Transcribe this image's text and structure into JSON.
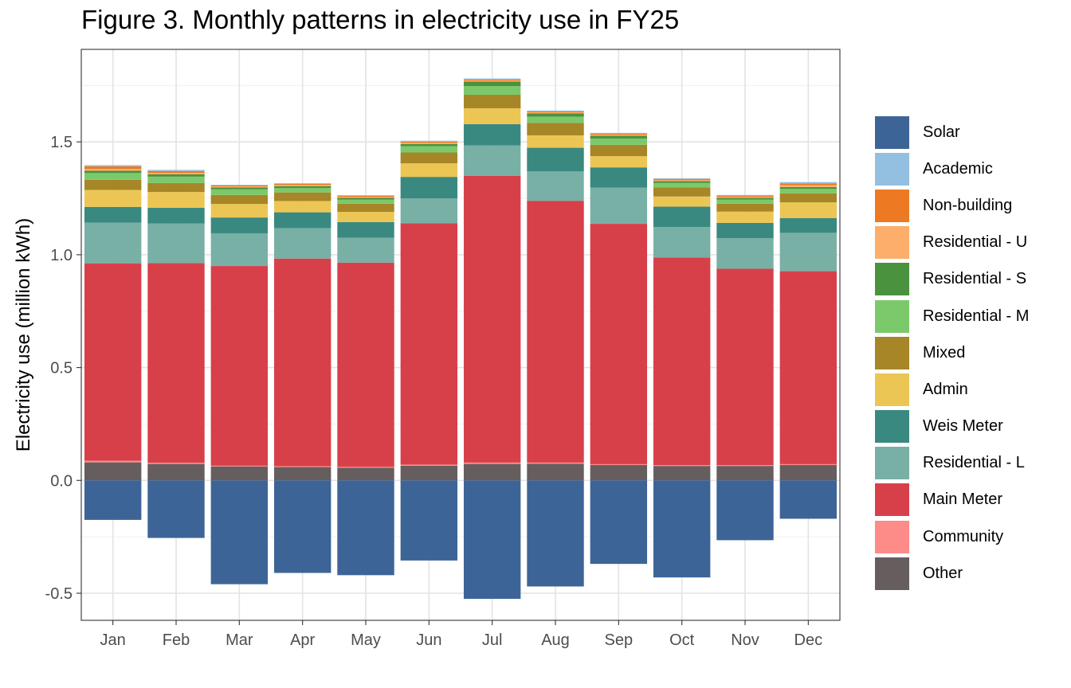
{
  "chart_data": {
    "type": "bar",
    "stacked": true,
    "title": "Figure 3. Monthly patterns in electricity use in FY25",
    "xlabel": "",
    "ylabel": "Electricity use (million kWh)",
    "ylim": [
      -0.62,
      1.91
    ],
    "yticks": [
      -0.5,
      0.0,
      0.5,
      1.0,
      1.5
    ],
    "ytick_labels": [
      "-0.5",
      "0.0",
      "0.5",
      "1.0",
      "1.5"
    ],
    "grid": true,
    "legend_position": "right",
    "categories": [
      "Jan",
      "Feb",
      "Mar",
      "Apr",
      "May",
      "Jun",
      "Jul",
      "Aug",
      "Sep",
      "Oct",
      "Nov",
      "Dec"
    ],
    "stack_order": [
      "Other",
      "Community",
      "Main Meter",
      "Residential - L",
      "Weis Meter",
      "Admin",
      "Mixed",
      "Residential - M",
      "Residential - S",
      "Residential - U",
      "Non-building",
      "Academic",
      "Solar"
    ],
    "series": [
      {
        "name": "Solar",
        "color": "#3d6496",
        "values": [
          -0.175,
          -0.255,
          -0.46,
          -0.41,
          -0.42,
          -0.355,
          -0.525,
          -0.47,
          -0.37,
          -0.43,
          -0.265,
          -0.17
        ]
      },
      {
        "name": "Academic",
        "color": "#93bfe0",
        "values": [
          0.005,
          0.005,
          0.003,
          0.003,
          0.003,
          0.004,
          0.005,
          0.004,
          0.004,
          0.003,
          0.003,
          0.006
        ]
      },
      {
        "name": "Non-building",
        "color": "#ed7a23",
        "values": [
          0.012,
          0.008,
          0.004,
          0.005,
          0.004,
          0.005,
          0.004,
          0.004,
          0.004,
          0.005,
          0.005,
          0.008
        ]
      },
      {
        "name": "Residential - U",
        "color": "#fcae6a",
        "values": [
          0.008,
          0.007,
          0.005,
          0.005,
          0.005,
          0.005,
          0.005,
          0.005,
          0.005,
          0.005,
          0.005,
          0.008
        ]
      },
      {
        "name": "Residential - S",
        "color": "#4a923e",
        "values": [
          0.01,
          0.01,
          0.008,
          0.008,
          0.008,
          0.01,
          0.02,
          0.014,
          0.012,
          0.008,
          0.008,
          0.008
        ]
      },
      {
        "name": "Residential - M",
        "color": "#7cc96b",
        "values": [
          0.03,
          0.028,
          0.025,
          0.02,
          0.018,
          0.028,
          0.038,
          0.028,
          0.028,
          0.02,
          0.018,
          0.02
        ]
      },
      {
        "name": "Mixed",
        "color": "#a68626",
        "values": [
          0.045,
          0.04,
          0.04,
          0.038,
          0.036,
          0.048,
          0.06,
          0.055,
          0.05,
          0.04,
          0.035,
          0.04
        ]
      },
      {
        "name": "Admin",
        "color": "#ecc654",
        "values": [
          0.075,
          0.07,
          0.06,
          0.05,
          0.045,
          0.06,
          0.07,
          0.055,
          0.05,
          0.045,
          0.05,
          0.07
        ]
      },
      {
        "name": "Weis Meter",
        "color": "#3a8980",
        "values": [
          0.07,
          0.07,
          0.07,
          0.07,
          0.07,
          0.095,
          0.095,
          0.105,
          0.09,
          0.09,
          0.068,
          0.065
        ]
      },
      {
        "name": "Residential - L",
        "color": "#78b0a6",
        "values": [
          0.18,
          0.175,
          0.145,
          0.135,
          0.11,
          0.11,
          0.135,
          0.13,
          0.16,
          0.135,
          0.135,
          0.17
        ]
      },
      {
        "name": "Main Meter",
        "color": "#d84049",
        "values": [
          0.875,
          0.885,
          0.885,
          0.92,
          0.905,
          1.07,
          1.27,
          1.16,
          1.065,
          0.92,
          0.87,
          0.855
        ]
      },
      {
        "name": "Community",
        "color": "#fd8b88",
        "values": [
          0.007,
          0.005,
          0.003,
          0.004,
          0.004,
          0.005,
          0.006,
          0.005,
          0.004,
          0.004,
          0.004,
          0.004
        ]
      },
      {
        "name": "Other",
        "color": "#665e5e",
        "values": [
          0.08,
          0.073,
          0.062,
          0.059,
          0.056,
          0.065,
          0.073,
          0.074,
          0.068,
          0.064,
          0.064,
          0.068
        ]
      }
    ]
  }
}
